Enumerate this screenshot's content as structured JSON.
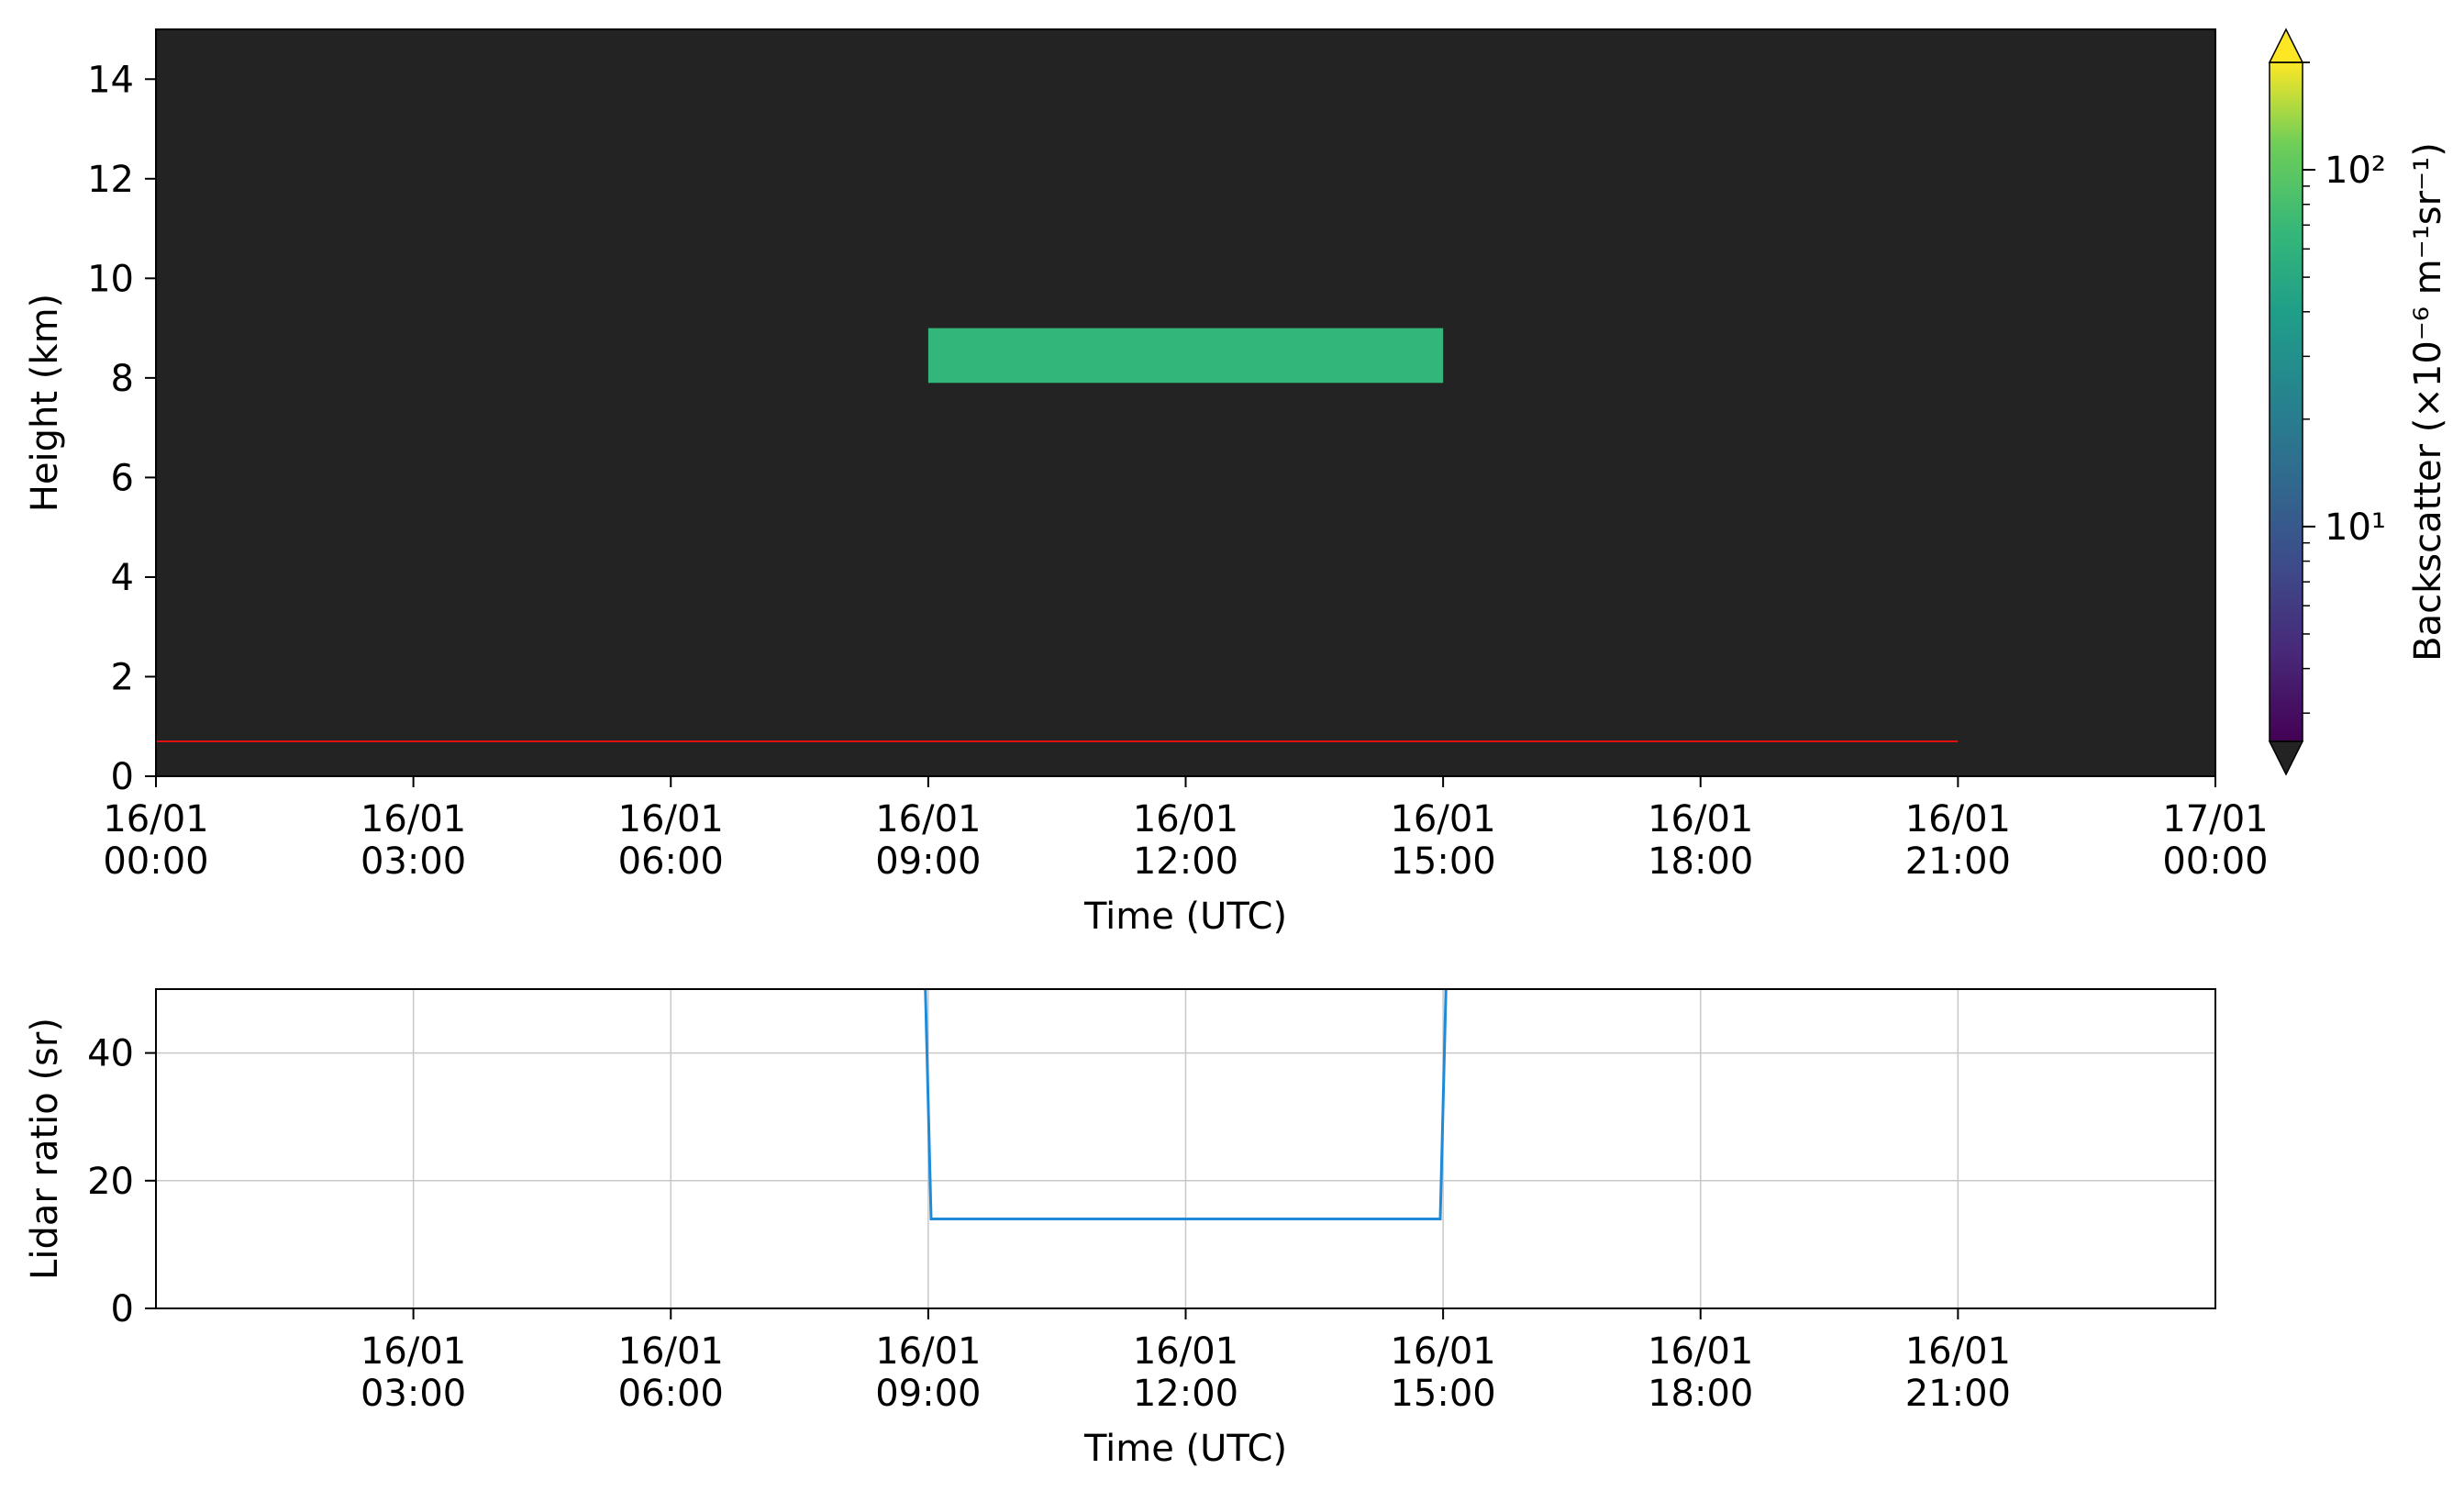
{
  "colors": {
    "plot_background": "#232323",
    "cloud_layer": "#33b679",
    "ground_line": "#dd1111",
    "lidar_line": "#1f8bd8",
    "grid": "#c8c8c8",
    "colorbar_over": "#fde725",
    "colorbar_under": "#232323"
  },
  "colorbar": {
    "label": "Backscatter (×10⁻⁶ m⁻¹sr⁻¹)",
    "scale": "log",
    "range": [
      2.5,
      200
    ],
    "major_ticks": [
      {
        "value": 10,
        "label": "10¹"
      },
      {
        "value": 100,
        "label": "10²"
      }
    ],
    "colormap": "viridis",
    "extend": "both"
  },
  "chart_data": [
    {
      "type": "heatmap",
      "title": "",
      "xlabel": "Time (UTC)",
      "ylabel": "Height (km)",
      "xlim": [
        "2016-01-16 00:00",
        "2016-01-17 00:00"
      ],
      "ylim": [
        0,
        15
      ],
      "x_ticks": [
        {
          "value": 0,
          "label": [
            "16/01",
            "00:00"
          ]
        },
        {
          "value": 3,
          "label": [
            "16/01",
            "03:00"
          ]
        },
        {
          "value": 6,
          "label": [
            "16/01",
            "06:00"
          ]
        },
        {
          "value": 9,
          "label": [
            "16/01",
            "09:00"
          ]
        },
        {
          "value": 12,
          "label": [
            "16/01",
            "12:00"
          ]
        },
        {
          "value": 15,
          "label": [
            "16/01",
            "15:00"
          ]
        },
        {
          "value": 18,
          "label": [
            "16/01",
            "18:00"
          ]
        },
        {
          "value": 21,
          "label": [
            "16/01",
            "21:00"
          ]
        },
        {
          "value": 24,
          "label": [
            "17/01",
            "00:00"
          ]
        }
      ],
      "y_ticks": [
        0,
        2,
        4,
        6,
        8,
        10,
        12,
        14
      ],
      "grid": false,
      "layers": [
        {
          "time_start": "2016-01-16 09:00",
          "time_end": "2016-01-16 15:00",
          "height_bottom": 7.9,
          "height_top": 9.0,
          "backscatter": 30
        }
      ],
      "ground_line": {
        "time_start": "2016-01-16 00:00",
        "time_end": "2016-01-16 21:00",
        "height": 0.7
      }
    },
    {
      "type": "line",
      "title": "",
      "xlabel": "Time (UTC)",
      "ylabel": "Lidar ratio (sr)",
      "xlim": [
        "2016-01-16 00:00",
        "2016-01-17 00:00"
      ],
      "ylim": [
        0,
        50
      ],
      "x_ticks": [
        {
          "value": 3,
          "label": [
            "16/01",
            "03:00"
          ]
        },
        {
          "value": 6,
          "label": [
            "16/01",
            "06:00"
          ]
        },
        {
          "value": 9,
          "label": [
            "16/01",
            "09:00"
          ]
        },
        {
          "value": 12,
          "label": [
            "16/01",
            "12:00"
          ]
        },
        {
          "value": 15,
          "label": [
            "16/01",
            "15:00"
          ]
        },
        {
          "value": 18,
          "label": [
            "16/01",
            "18:00"
          ]
        },
        {
          "value": 21,
          "label": [
            "16/01",
            "21:00"
          ]
        }
      ],
      "y_ticks": [
        0,
        20,
        40
      ],
      "grid": true,
      "series": [
        {
          "x": [
            "2016-01-16 08:58",
            "2016-01-16 09:02",
            "2016-01-16 14:58",
            "2016-01-16 15:02"
          ],
          "y": [
            50,
            14,
            14,
            50
          ]
        }
      ]
    }
  ]
}
